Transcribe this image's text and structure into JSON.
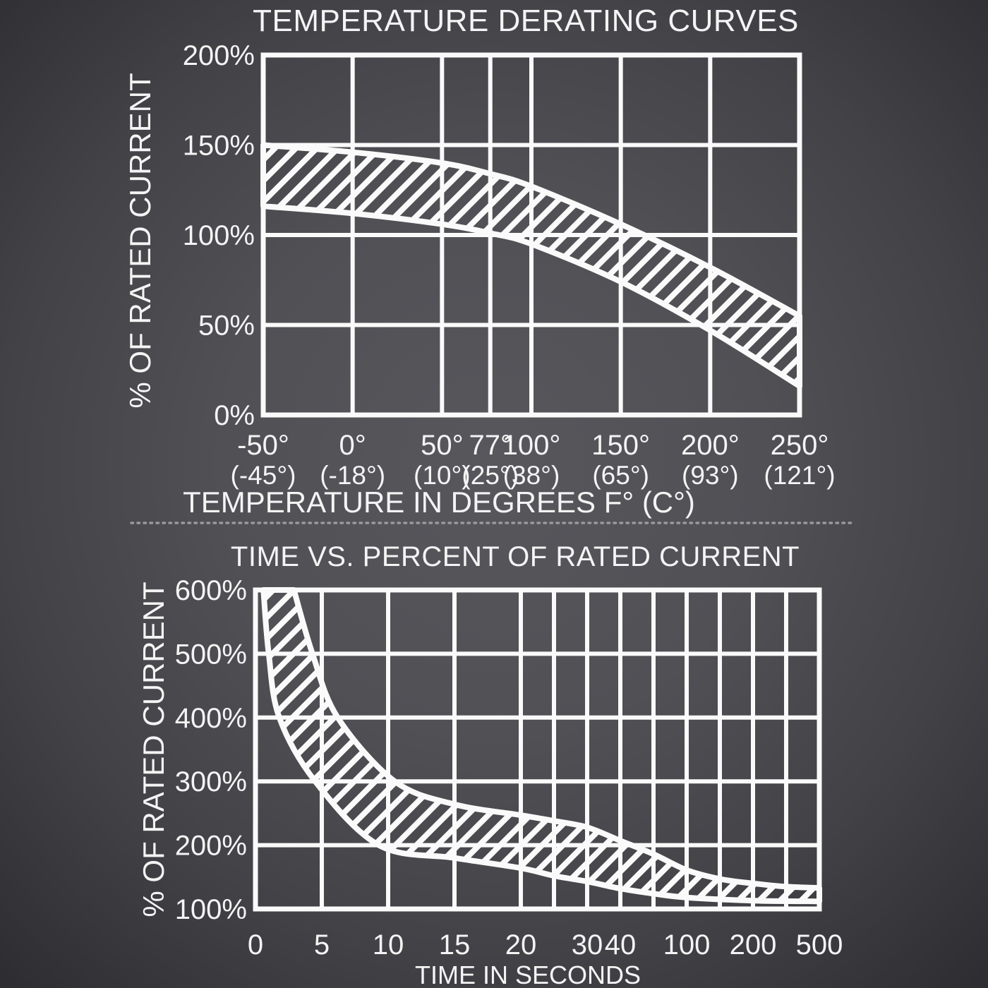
{
  "style": {
    "line_color": "#fafafa",
    "text_color": "#f4f4f4",
    "divider_color": "#9a9a9c",
    "background_center": "#57575c",
    "background_edge": "#2d2d31"
  },
  "divider": {
    "style": "dotted"
  },
  "chart_data": [
    {
      "type": "area",
      "title": "TEMPERATURE DERATING CURVES",
      "xlabel": "TEMPERATURE IN DEGREES F° (C°)",
      "ylabel": "% OF RATED CURRENT",
      "xlim": [
        -50,
        250
      ],
      "ylim": [
        0,
        200
      ],
      "grid": true,
      "y_ticks": [
        {
          "label": "200%",
          "value": 200
        },
        {
          "label": "150%",
          "value": 150
        },
        {
          "label": "100%",
          "value": 100
        },
        {
          "label": "50%",
          "value": 50
        },
        {
          "label": "0%",
          "value": 0
        }
      ],
      "x_ticks": [
        {
          "f": "-50°",
          "c": "(-45°)",
          "value": -50
        },
        {
          "f": "0°",
          "c": "(-18°)",
          "value": 0
        },
        {
          "f": "50°",
          "c": "(10°)",
          "value": 50
        },
        {
          "f": "77°",
          "c": "(25°)",
          "value": 77
        },
        {
          "f": "100°",
          "c": "(38°)",
          "value": 100
        },
        {
          "f": "150°",
          "c": "(65°)",
          "value": 150
        },
        {
          "f": "200°",
          "c": "(93°)",
          "value": 200
        },
        {
          "f": "250°",
          "c": "(121°)",
          "value": 250
        }
      ],
      "series": [
        {
          "name": "derating-band-upper",
          "points": [
            [
              -50,
              150
            ],
            [
              0,
              146
            ],
            [
              50,
              140
            ],
            [
              77,
              134
            ],
            [
              100,
              127
            ],
            [
              150,
              106
            ],
            [
              200,
              82
            ],
            [
              250,
              55
            ]
          ]
        },
        {
          "name": "derating-band-lower",
          "points": [
            [
              -50,
              116
            ],
            [
              0,
              112
            ],
            [
              50,
              106
            ],
            [
              77,
              101
            ],
            [
              100,
              95
            ],
            [
              150,
              74
            ],
            [
              200,
              47
            ],
            [
              250,
              16
            ]
          ]
        }
      ]
    },
    {
      "type": "area",
      "title": "TIME VS. PERCENT OF RATED CURRENT",
      "xlabel": "TIME IN SECONDS",
      "ylabel": "% OF RATED CURRENT",
      "xlim": [
        0,
        500
      ],
      "ylim": [
        100,
        600
      ],
      "grid": true,
      "x_scale_anchors": [
        0,
        5,
        10,
        15,
        20,
        25,
        30,
        40,
        60,
        100,
        150,
        200,
        300,
        500
      ],
      "y_ticks": [
        {
          "label": "600%",
          "value": 600
        },
        {
          "label": "500%",
          "value": 500
        },
        {
          "label": "400%",
          "value": 400
        },
        {
          "label": "300%",
          "value": 300
        },
        {
          "label": "200%",
          "value": 200
        },
        {
          "label": "100%",
          "value": 100
        }
      ],
      "x_ticks": [
        {
          "label": "0",
          "value": 0
        },
        {
          "label": "5",
          "value": 5
        },
        {
          "label": "10",
          "value": 10
        },
        {
          "label": "15",
          "value": 15
        },
        {
          "label": "20",
          "value": 20
        },
        {
          "label": "30",
          "value": 30
        },
        {
          "label": "40",
          "value": 40
        },
        {
          "label": "100",
          "value": 100
        },
        {
          "label": "200",
          "value": 200
        },
        {
          "label": "500",
          "value": 500
        }
      ],
      "x_gridlines": [
        0,
        5,
        10,
        15,
        20,
        25,
        30,
        40,
        60,
        100,
        150,
        200,
        300,
        500
      ],
      "series": [
        {
          "name": "trip-band-upper",
          "points": [
            [
              2.9,
              600
            ],
            [
              4.3,
              500
            ],
            [
              6.2,
              400
            ],
            [
              10.5,
              300
            ],
            [
              15,
              264
            ],
            [
              20,
              247
            ],
            [
              25,
              238
            ],
            [
              30,
              228
            ],
            [
              40,
              207
            ],
            [
              60,
              186
            ],
            [
              100,
              161
            ],
            [
              150,
              147
            ],
            [
              200,
              140
            ],
            [
              300,
              135
            ],
            [
              500,
              133
            ]
          ]
        },
        {
          "name": "trip-band-lower",
          "points": [
            [
              0.6,
              600
            ],
            [
              1.0,
              500
            ],
            [
              1.8,
              400
            ],
            [
              4.5,
              300
            ],
            [
              9.3,
              200
            ],
            [
              15,
              180
            ],
            [
              20,
              164
            ],
            [
              25,
              152
            ],
            [
              30,
              143
            ],
            [
              40,
              132
            ],
            [
              60,
              124
            ],
            [
              100,
              118
            ],
            [
              200,
              113
            ],
            [
              500,
              112
            ]
          ]
        }
      ]
    }
  ]
}
